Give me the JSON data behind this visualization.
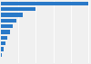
{
  "values": [
    210000,
    82000,
    52000,
    38000,
    28000,
    22000,
    16000,
    10000,
    5500,
    2500,
    1000
  ],
  "bar_color": "#2979c8",
  "background_color": "#f0f0f0",
  "grid_color": "#ffffff",
  "n_bars": 11
}
